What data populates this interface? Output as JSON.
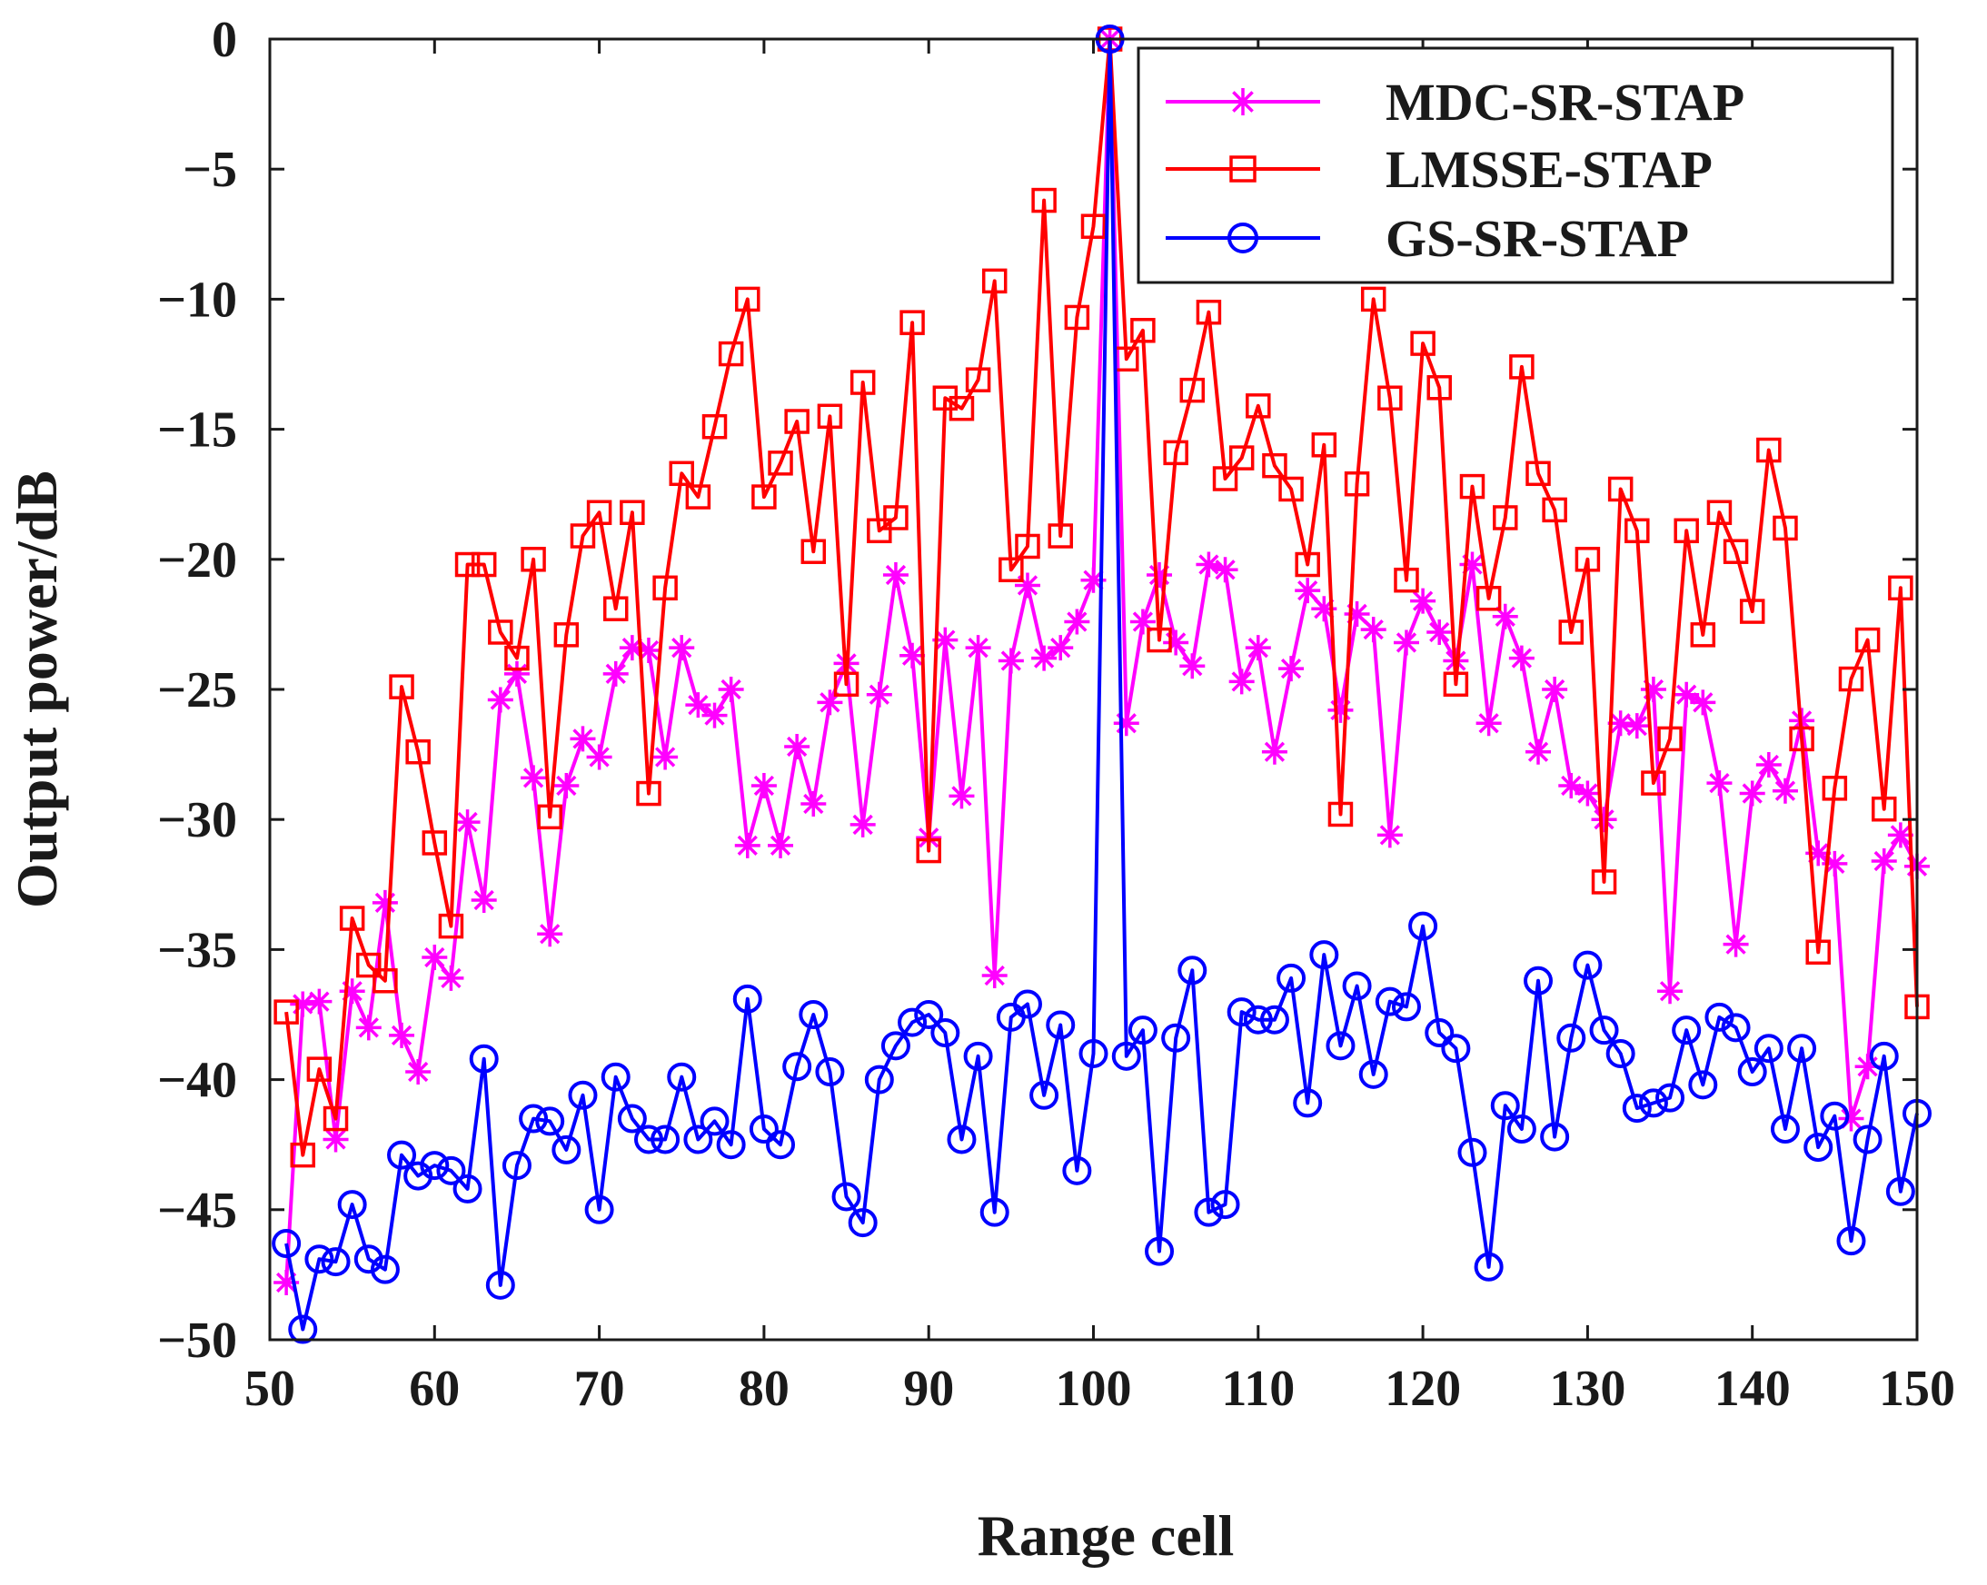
{
  "chart_data": {
    "type": "line",
    "xlabel": "Range cell",
    "ylabel": "Output power/dB",
    "xlim": [
      50,
      150
    ],
    "ylim": [
      -50,
      0
    ],
    "xticks": [
      50,
      60,
      70,
      80,
      90,
      100,
      110,
      120,
      130,
      140,
      150
    ],
    "yticks": [
      0,
      -5,
      -10,
      -15,
      -20,
      -25,
      -30,
      -35,
      -40,
      -45,
      -50
    ],
    "grid": false,
    "legend_position": "top-right",
    "x": [
      51,
      52,
      53,
      54,
      55,
      56,
      57,
      58,
      59,
      60,
      61,
      62,
      63,
      64,
      65,
      66,
      67,
      68,
      69,
      70,
      71,
      72,
      73,
      74,
      75,
      76,
      77,
      78,
      79,
      80,
      81,
      82,
      83,
      84,
      85,
      86,
      87,
      88,
      89,
      90,
      91,
      92,
      93,
      94,
      95,
      96,
      97,
      98,
      99,
      100,
      101,
      102,
      103,
      104,
      105,
      106,
      107,
      108,
      109,
      110,
      111,
      112,
      113,
      114,
      115,
      116,
      117,
      118,
      119,
      120,
      121,
      122,
      123,
      124,
      125,
      126,
      127,
      128,
      129,
      130,
      131,
      132,
      133,
      134,
      135,
      136,
      137,
      138,
      139,
      140,
      141,
      142,
      143,
      144,
      145,
      146,
      147,
      148,
      149,
      150
    ],
    "series": [
      {
        "name": "MDC-SR-STAP",
        "color": "#ff00ff",
        "marker": "asterisk",
        "values": [
          -47.8,
          -37.1,
          -37,
          -42.3,
          -36.6,
          -38,
          -33.2,
          -38.3,
          -39.7,
          -35.3,
          -36.1,
          -30.1,
          -33.1,
          -25.4,
          -24.4,
          -28.4,
          -34.4,
          -28.7,
          -26.9,
          -27.6,
          -24.4,
          -23.4,
          -23.5,
          -27.6,
          -23.4,
          -25.6,
          -26.0,
          -25.0,
          -31.0,
          -28.7,
          -31.0,
          -27.2,
          -29.4,
          -25.5,
          -24.0,
          -30.2,
          -25.2,
          -20.6,
          -23.7,
          -30.7,
          -23.1,
          -29.1,
          -23.4,
          -36.0,
          -23.9,
          -21.0,
          -23.8,
          -23.4,
          -22.4,
          -20.8,
          0,
          -26.3,
          -22.4,
          -20.6,
          -23.2,
          -24.1,
          -20.2,
          -20.4,
          -24.7,
          -23.4,
          -27.4,
          -24.2,
          -21.2,
          -21.9,
          -25.8,
          -22.1,
          -22.7,
          -30.6,
          -23.2,
          -21.6,
          -22.8,
          -23.9,
          -20.2,
          -26.3,
          -22.2,
          -23.8,
          -27.4,
          -25.0,
          -28.7,
          -29.0,
          -30.0,
          -26.3,
          -26.4,
          -25.0,
          -36.6,
          -25.2,
          -25.5,
          -28.6,
          -34.8,
          -29.0,
          -27.9,
          -28.9,
          -26.2,
          -31.3,
          -31.7,
          -41.5,
          -39.5,
          -31.6,
          -30.6,
          -31.8
        ]
      },
      {
        "name": "LMSSE-STAP",
        "color": "#ff0000",
        "marker": "square",
        "values": [
          -37.4,
          -42.9,
          -39.6,
          -41.5,
          -33.8,
          -35.6,
          -36.2,
          -24.9,
          -27.4,
          -30.9,
          -34.1,
          -20.2,
          -20.2,
          -22.8,
          -23.8,
          -20.0,
          -29.9,
          -22.9,
          -19.1,
          -18.2,
          -21.9,
          -18.2,
          -29.0,
          -21.1,
          -16.7,
          -17.6,
          -14.9,
          -12.1,
          -10.0,
          -17.6,
          -16.3,
          -14.7,
          -19.7,
          -14.5,
          -24.8,
          -13.2,
          -18.9,
          -18.4,
          -10.9,
          -31.2,
          -13.8,
          -14.2,
          -13.1,
          -9.3,
          -20.4,
          -19.5,
          -6.2,
          -19.1,
          -10.7,
          -7.2,
          0,
          -12.3,
          -11.2,
          -23.1,
          -15.9,
          -13.5,
          -10.5,
          -16.9,
          -16.1,
          -14.1,
          -16.4,
          -17.3,
          -20.2,
          -15.6,
          -29.8,
          -17.1,
          -10.0,
          -13.8,
          -20.8,
          -11.7,
          -13.4,
          -24.8,
          -17.2,
          -21.5,
          -18.4,
          -12.6,
          -16.7,
          -18.1,
          -22.8,
          -20.0,
          -32.4,
          -17.3,
          -18.9,
          -28.6,
          -26.9,
          -18.9,
          -22.9,
          -18.2,
          -19.7,
          -22.0,
          -15.8,
          -18.8,
          -26.9,
          -35.1,
          -28.8,
          -24.6,
          -23.1,
          -29.6,
          -21.1,
          -37.2
        ]
      },
      {
        "name": "GS-SR-STAP",
        "color": "#0000ff",
        "marker": "circle",
        "values": [
          -46.3,
          -49.6,
          -46.9,
          -47.0,
          -44.8,
          -46.9,
          -47.3,
          -42.9,
          -43.7,
          -43.3,
          -43.5,
          -44.2,
          -39.2,
          -47.9,
          -43.3,
          -41.5,
          -41.6,
          -42.7,
          -40.6,
          -45.0,
          -39.9,
          -41.5,
          -42.3,
          -42.3,
          -39.9,
          -42.3,
          -41.6,
          -42.5,
          -36.9,
          -41.9,
          -42.5,
          -39.5,
          -37.5,
          -39.7,
          -44.5,
          -45.5,
          -40.0,
          -38.7,
          -37.8,
          -37.5,
          -38.2,
          -42.3,
          -39.1,
          -45.1,
          -37.6,
          -37.1,
          -40.6,
          -37.9,
          -43.5,
          -39.0,
          0,
          -39.1,
          -38.1,
          -46.6,
          -38.4,
          -35.8,
          -45.1,
          -44.8,
          -37.4,
          -37.7,
          -37.7,
          -36.1,
          -40.9,
          -35.2,
          -38.7,
          -36.4,
          -39.8,
          -37.0,
          -37.2,
          -34.1,
          -38.2,
          -38.8,
          -42.8,
          -47.2,
          -41.0,
          -41.9,
          -36.2,
          -42.2,
          -38.4,
          -35.6,
          -38.1,
          -39.0,
          -41.1,
          -40.9,
          -40.7,
          -38.1,
          -40.2,
          -37.6,
          -38.0,
          -39.7,
          -38.8,
          -41.9,
          -38.8,
          -42.6,
          -41.4,
          -46.2,
          -42.3,
          -39.1,
          -44.3,
          -41.3
        ]
      }
    ]
  }
}
